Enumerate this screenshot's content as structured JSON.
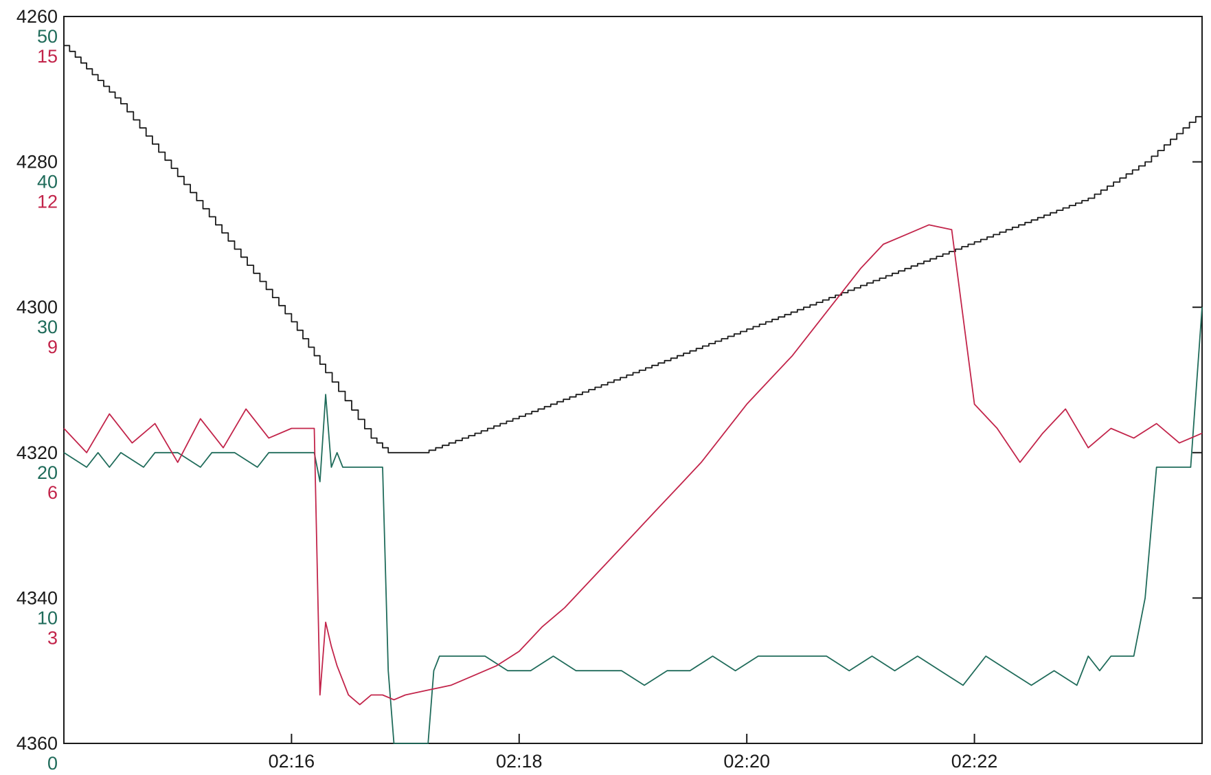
{
  "chart_data": {
    "type": "line",
    "title": "",
    "xlabel": "",
    "x_ticks": [
      "02:16",
      "02:18",
      "02:20",
      "02:22"
    ],
    "xlim": [
      -2.0,
      8.0
    ],
    "grid": false,
    "axes": {
      "left_black": {
        "ticks": [
          "4260",
          "4280",
          "4300",
          "4320",
          "4340",
          "4360"
        ],
        "ylim": [
          4260,
          4360
        ],
        "inverted": true,
        "color": "#1a1a1a"
      },
      "left_green": {
        "ticks": [
          "50",
          "40",
          "30",
          "20",
          "10",
          "0"
        ],
        "ylim": [
          0,
          50
        ],
        "color": "#1f6b5a"
      },
      "left_red": {
        "ticks": [
          "15",
          "12",
          "9",
          "6",
          "3"
        ],
        "ylim": [
          0,
          15
        ],
        "color": "#c2244a"
      }
    },
    "series": [
      {
        "axis": "left_black",
        "color": "#1a1a1a",
        "stepped": true,
        "x": [
          -2.0,
          -1.75,
          -1.5,
          -1.0,
          -0.5,
          0.0,
          0.3,
          0.7,
          0.85,
          1.15,
          1.5,
          2.0,
          2.5,
          3.0,
          3.5,
          4.0,
          4.5,
          5.0,
          5.5,
          6.0,
          6.5,
          7.0,
          7.5,
          8.0
        ],
        "y": [
          4264,
          4268,
          4272,
          4282,
          4292,
          4302,
          4309,
          4318,
          4320,
          4320,
          4318,
          4315,
          4312,
          4309,
          4306,
          4303,
          4300,
          4297,
          4294,
          4291,
          4288,
          4285,
          4280,
          4273
        ]
      },
      {
        "axis": "left_green",
        "color": "#1f6b5a",
        "x": [
          -2.0,
          -1.8,
          -1.7,
          -1.6,
          -1.5,
          -1.3,
          -1.2,
          -1.0,
          -0.8,
          -0.7,
          -0.5,
          -0.3,
          -0.2,
          0.0,
          0.2,
          0.25,
          0.3,
          0.35,
          0.4,
          0.45,
          0.5,
          0.6,
          0.7,
          0.8,
          0.85,
          0.9,
          0.95,
          1.0,
          1.2,
          1.25,
          1.3,
          1.5,
          1.7,
          1.9,
          2.1,
          2.3,
          2.5,
          2.7,
          2.9,
          3.1,
          3.3,
          3.5,
          3.7,
          3.9,
          4.1,
          4.3,
          4.5,
          4.7,
          4.9,
          5.1,
          5.3,
          5.5,
          5.7,
          5.9,
          6.1,
          6.3,
          6.5,
          6.7,
          6.9,
          7.0,
          7.1,
          7.2,
          7.3,
          7.4,
          7.5,
          7.6,
          7.7,
          7.8,
          7.9,
          8.0
        ],
        "y": [
          20,
          19,
          20,
          19,
          20,
          19,
          20,
          20,
          19,
          20,
          20,
          19,
          20,
          20,
          20,
          18,
          24,
          19,
          20,
          19,
          19,
          19,
          19,
          19,
          5,
          0,
          0,
          0,
          0,
          5,
          6,
          6,
          6,
          5,
          5,
          6,
          5,
          5,
          5,
          4,
          5,
          5,
          6,
          5,
          6,
          6,
          6,
          6,
          5,
          6,
          5,
          6,
          5,
          4,
          6,
          5,
          4,
          5,
          4,
          6,
          5,
          6,
          6,
          6,
          10,
          19,
          19,
          19,
          19,
          30
        ]
      },
      {
        "axis": "left_red",
        "color": "#c2244a",
        "x": [
          -2.0,
          -1.8,
          -1.6,
          -1.4,
          -1.2,
          -1.0,
          -0.8,
          -0.6,
          -0.4,
          -0.2,
          0.0,
          0.2,
          0.25,
          0.3,
          0.35,
          0.4,
          0.5,
          0.6,
          0.7,
          0.8,
          0.9,
          1.0,
          1.2,
          1.4,
          1.6,
          1.8,
          2.0,
          2.2,
          2.4,
          2.6,
          2.8,
          3.0,
          3.2,
          3.4,
          3.6,
          3.8,
          4.0,
          4.2,
          4.4,
          4.6,
          4.8,
          5.0,
          5.2,
          5.4,
          5.6,
          5.8,
          6.0,
          6.2,
          6.4,
          6.6,
          6.8,
          7.0,
          7.2,
          7.4,
          7.6,
          7.8,
          8.0
        ],
        "y": [
          6.5,
          6.0,
          6.8,
          6.2,
          6.6,
          5.8,
          6.7,
          6.1,
          6.9,
          6.3,
          6.5,
          6.5,
          1.0,
          2.5,
          2.0,
          1.6,
          1.0,
          0.8,
          1.0,
          1.0,
          0.9,
          1.0,
          1.1,
          1.2,
          1.4,
          1.6,
          1.9,
          2.4,
          2.8,
          3.3,
          3.8,
          4.3,
          4.8,
          5.3,
          5.8,
          6.4,
          7.0,
          7.5,
          8.0,
          8.6,
          9.2,
          9.8,
          10.3,
          10.5,
          10.7,
          10.6,
          7.0,
          6.5,
          5.8,
          6.4,
          6.9,
          6.1,
          6.5,
          6.3,
          6.6,
          6.2,
          6.4
        ]
      }
    ]
  }
}
